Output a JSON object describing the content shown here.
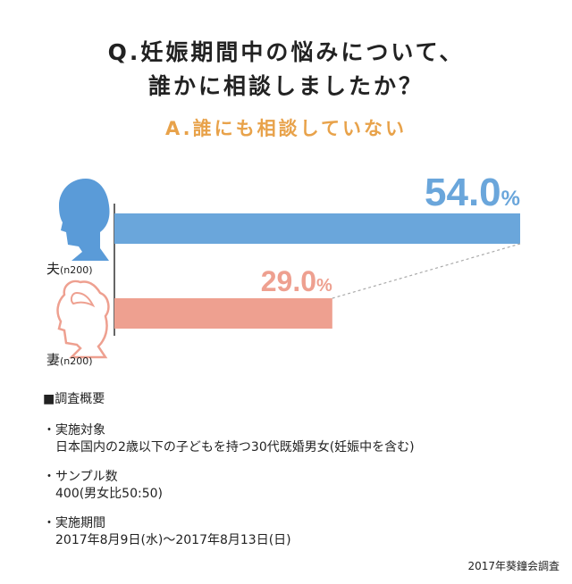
{
  "question": {
    "line1": "Q.妊娠期間中の悩みについて、",
    "line2": "誰かに相談しましたか？"
  },
  "answer": "A.誰にも相談していない",
  "colors": {
    "husband": "#6aa6db",
    "wife": "#eea090",
    "answer": "#e8a24a",
    "icon_husband": "#5a9bd8",
    "icon_wife": "#eea090"
  },
  "chart_data": {
    "type": "bar",
    "orientation": "horizontal",
    "categories": [
      "夫(n200)",
      "妻(n200)"
    ],
    "series": [
      {
        "values": [
          54.0,
          29.0
        ]
      }
    ],
    "value_labels": [
      "54.0%",
      "29.0%"
    ],
    "xlim": [
      0,
      54
    ]
  },
  "labels": {
    "husband": {
      "main": "夫",
      "n": "(n200)",
      "value": "54.0",
      "unit": "%"
    },
    "wife": {
      "main": "妻",
      "n": "(n200)",
      "value": "29.0",
      "unit": "%"
    }
  },
  "survey": {
    "heading": "■調査概要",
    "items": [
      {
        "label": "・実施対象",
        "value": "日本国内の2歳以下の子どもを持つ30代既婚男女(妊娠中を含む)"
      },
      {
        "label": "・サンプル数",
        "value": "400(男女比50:50)"
      },
      {
        "label": "・実施期間",
        "value": "2017年8月9日(水)～2017年8月13日(日)"
      }
    ]
  },
  "source": "2017年葵鐘会調査"
}
